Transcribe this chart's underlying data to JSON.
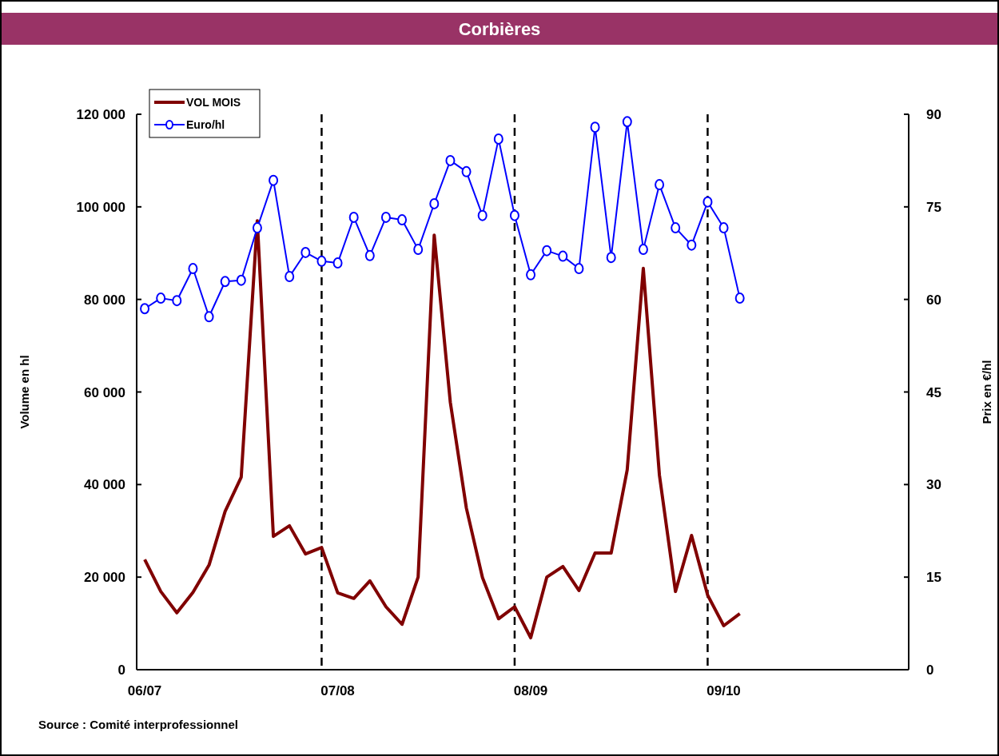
{
  "chart_data": {
    "type": "line",
    "title": "Corbières",
    "ylabel": "Volume en hl",
    "y2label": "Prix en €/hl",
    "annotations": [
      "Source : Comité interprofessionnel"
    ],
    "categories": [
      "06/07",
      null,
      null,
      null,
      null,
      null,
      null,
      null,
      null,
      null,
      null,
      null,
      "07/08",
      null,
      null,
      null,
      null,
      null,
      null,
      null,
      null,
      null,
      null,
      null,
      "08/09",
      null,
      null,
      null,
      null,
      null,
      null,
      null,
      null,
      null,
      null,
      null,
      "09/10",
      null,
      null,
      null,
      null,
      null,
      null,
      null,
      null,
      null,
      null,
      null
    ],
    "ylim": [
      0,
      120000
    ],
    "yticks": [
      {
        "value": 0,
        "label": "0"
      },
      {
        "value": 20000,
        "label": "20 000"
      },
      {
        "value": 40000,
        "label": "40 000"
      },
      {
        "value": 60000,
        "label": "60 000"
      },
      {
        "value": 80000,
        "label": "80 000"
      },
      {
        "value": 100000,
        "label": "100 000"
      },
      {
        "value": 120000,
        "label": "120 000"
      }
    ],
    "y2lim": [
      0,
      90
    ],
    "y2ticks": [
      0,
      15,
      30,
      45,
      60,
      75,
      90
    ],
    "series": [
      {
        "name": "VOL MOIS",
        "color": "#800000",
        "marker": "none",
        "values": [
          23800,
          16900,
          12300,
          16700,
          22600,
          34200,
          41600,
          97000,
          28800,
          31100,
          25000,
          26400,
          16600,
          15400,
          19200,
          13600,
          9800,
          20000,
          93900,
          57800,
          34900,
          19900,
          11000,
          13600,
          6900,
          20000,
          22300,
          17100,
          25200,
          25200,
          43200,
          86700,
          42100,
          16900,
          29000,
          16100,
          9500,
          12100,
          null,
          null,
          null,
          null,
          null,
          null,
          null,
          null,
          null,
          null
        ]
      },
      {
        "name": "Euro/hl",
        "color": "#0000ff",
        "axis": "y2",
        "marker": "circle",
        "values": [
          58.5,
          60.2,
          59.8,
          65.0,
          57.2,
          62.9,
          63.1,
          71.6,
          79.3,
          63.7,
          67.6,
          66.2,
          65.9,
          73.3,
          67.1,
          73.3,
          72.9,
          68.1,
          75.5,
          82.5,
          80.7,
          73.6,
          86.0,
          73.6,
          64.0,
          67.9,
          67.0,
          65.0,
          87.9,
          66.8,
          88.8,
          68.1,
          78.6,
          71.6,
          68.8,
          75.8,
          71.6,
          60.2,
          null,
          null,
          null,
          null,
          null,
          null,
          null,
          null,
          null,
          null
        ]
      }
    ],
    "legend": "top left",
    "grid": "x"
  }
}
